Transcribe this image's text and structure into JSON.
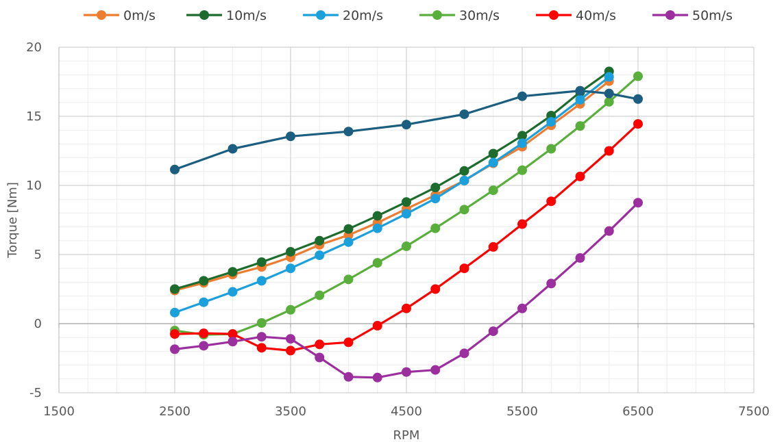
{
  "chart_data": {
    "type": "line",
    "xlabel": "RPM",
    "ylabel": "Torque [Nm]",
    "xlim": [
      1500,
      7500
    ],
    "ylim": [
      -5,
      20
    ],
    "x_ticks": [
      1500,
      2500,
      3500,
      4500,
      5500,
      6500,
      7500
    ],
    "y_ticks": [
      -5,
      0,
      5,
      10,
      15,
      20
    ],
    "grid": true,
    "minor_grid": true,
    "legend_position": "top",
    "series": [
      {
        "name": "0m/s",
        "color": "#ED7D31",
        "x": [
          2500,
          2750,
          3000,
          3250,
          3500,
          3750,
          4000,
          4250,
          4500,
          4750,
          5000,
          5250,
          5500,
          5750,
          6000,
          6250
        ],
        "y": [
          2.4,
          2.95,
          3.55,
          4.1,
          4.8,
          5.7,
          6.4,
          7.3,
          8.3,
          9.3,
          10.35,
          11.6,
          12.8,
          14.35,
          15.9,
          17.55
        ]
      },
      {
        "name": "10m/s",
        "color": "#1E6B2E",
        "x": [
          2500,
          2750,
          3000,
          3250,
          3500,
          3750,
          4000,
          4250,
          4500,
          4750,
          5000,
          5250,
          5500,
          5750,
          6000,
          6250
        ],
        "y": [
          2.5,
          3.1,
          3.75,
          4.45,
          5.2,
          6.0,
          6.85,
          7.8,
          8.8,
          9.85,
          11.05,
          12.3,
          13.6,
          15.05,
          16.75,
          18.25
        ]
      },
      {
        "name": "20m/s",
        "color": "#1CA0DB",
        "x": [
          2500,
          2750,
          3000,
          3250,
          3500,
          3750,
          4000,
          4250,
          4500,
          4750,
          5000,
          5250,
          5500,
          5750,
          6000,
          6250
        ],
        "y": [
          0.8,
          1.55,
          2.3,
          3.1,
          4.0,
          4.95,
          5.9,
          6.9,
          7.95,
          9.05,
          10.35,
          11.65,
          13.05,
          14.6,
          16.2,
          17.85
        ]
      },
      {
        "name": "30m/s",
        "color": "#5AAF3C",
        "x": [
          2500,
          2750,
          3000,
          3250,
          3500,
          3750,
          4000,
          4250,
          4500,
          4750,
          5000,
          5250,
          5500,
          5750,
          6000,
          6250,
          6500
        ],
        "y": [
          -0.5,
          -0.8,
          -0.75,
          0.05,
          1.0,
          2.05,
          3.2,
          4.4,
          5.6,
          6.9,
          8.25,
          9.65,
          11.1,
          12.65,
          14.3,
          16.05,
          17.9
        ]
      },
      {
        "name": "40m/s",
        "color": "#FF0000",
        "x": [
          2500,
          2750,
          3000,
          3250,
          3500,
          3750,
          4000,
          4250,
          4500,
          4750,
          5000,
          5250,
          5500,
          5750,
          6000,
          6250,
          6500
        ],
        "y": [
          -0.75,
          -0.7,
          -0.75,
          -1.75,
          -1.95,
          -1.5,
          -1.35,
          -0.15,
          1.1,
          2.5,
          4.0,
          5.55,
          7.2,
          8.85,
          10.65,
          12.5,
          14.45
        ]
      },
      {
        "name": "50m/s",
        "color": "#9B2F9E",
        "x": [
          2500,
          2750,
          3000,
          3250,
          3500,
          3750,
          4000,
          4250,
          4500,
          4750,
          5000,
          5250,
          5500,
          5750,
          6000,
          6250,
          6500
        ],
        "y": [
          -1.85,
          -1.6,
          -1.3,
          -0.95,
          -1.1,
          -2.45,
          -3.85,
          -3.9,
          -3.5,
          -3.35,
          -2.15,
          -0.55,
          1.1,
          2.9,
          4.75,
          6.7,
          8.75
        ]
      },
      {
        "color": "#1B5E80",
        "x": [
          2500,
          3000,
          3500,
          4000,
          4500,
          5000,
          5500,
          6000,
          6250,
          6500
        ],
        "y": [
          11.15,
          12.65,
          13.55,
          13.9,
          14.4,
          15.15,
          16.45,
          16.85,
          16.65,
          16.25
        ]
      }
    ]
  }
}
